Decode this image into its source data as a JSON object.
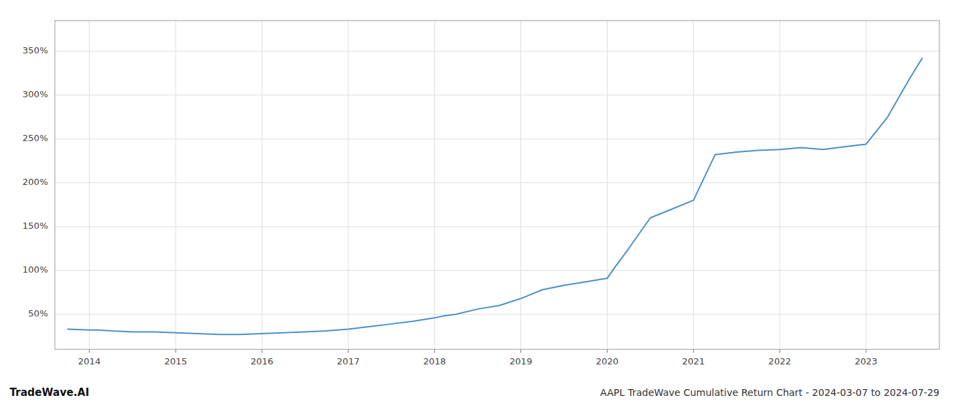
{
  "chart_data": {
    "type": "line",
    "title": "AAPL TradeWave Cumulative Return Chart - 2024-03-07 to 2024-07-29",
    "annotations": [
      "TradeWave.AI"
    ],
    "color": "#4a90c4",
    "grid": true,
    "x": [
      2013.75,
      2014.0,
      2014.1,
      2014.25,
      2014.5,
      2014.75,
      2015.0,
      2015.25,
      2015.5,
      2015.75,
      2016.0,
      2016.25,
      2016.5,
      2016.75,
      2017.0,
      2017.25,
      2017.5,
      2017.75,
      2018.0,
      2018.1,
      2018.25,
      2018.5,
      2018.75,
      2019.0,
      2019.1,
      2019.25,
      2019.5,
      2019.75,
      2020.0,
      2020.1,
      2020.25,
      2020.5,
      2020.75,
      2021.0,
      2021.25,
      2021.5,
      2021.75,
      2022.0,
      2022.25,
      2022.5,
      2022.75,
      2023.0,
      2023.25,
      2023.5,
      2023.65
    ],
    "values": [
      33,
      32,
      32,
      31,
      30,
      30,
      29,
      28,
      27,
      27,
      28,
      29,
      30,
      31,
      33,
      36,
      39,
      42,
      46,
      48,
      50,
      56,
      60,
      68,
      72,
      78,
      83,
      87,
      91,
      105,
      125,
      160,
      170,
      180,
      232,
      235,
      237,
      238,
      240,
      238,
      241,
      244,
      275,
      318,
      342
    ],
    "xlim": [
      2013.6,
      2023.85
    ],
    "xticks": [
      2014,
      2015,
      2016,
      2017,
      2018,
      2019,
      2020,
      2021,
      2022,
      2023
    ],
    "ylim": [
      10,
      385
    ],
    "yticks": [
      {
        "value": 50,
        "label": "50%"
      },
      {
        "value": 100,
        "label": "100%"
      },
      {
        "value": 150,
        "label": "150%"
      },
      {
        "value": 200,
        "label": "200%"
      },
      {
        "value": 250,
        "label": "250%"
      },
      {
        "value": 300,
        "label": "300%"
      },
      {
        "value": 350,
        "label": "350%"
      }
    ]
  }
}
